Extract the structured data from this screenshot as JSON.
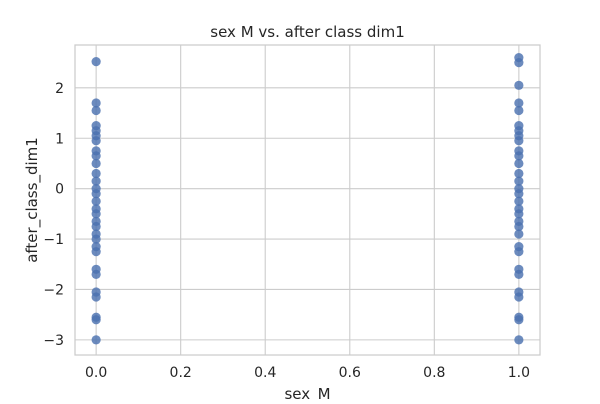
{
  "chart_data": {
    "type": "scatter",
    "title": "sex M vs. after class dim1",
    "xlabel": "sex_M",
    "ylabel": "after_class_dim1",
    "xlim": [
      -0.05,
      1.05
    ],
    "ylim": [
      -3.3,
      2.85
    ],
    "grid": true,
    "xticks": [
      0.0,
      0.2,
      0.4,
      0.6,
      0.8,
      1.0
    ],
    "xtick_labels": [
      "0.0",
      "0.2",
      "0.4",
      "0.6",
      "0.8",
      "1.0"
    ],
    "yticks": [
      -3,
      -2,
      -1,
      0,
      1,
      2
    ],
    "ytick_labels": [
      "−3",
      "−2",
      "−1",
      "0",
      "1",
      "2"
    ],
    "series": [
      {
        "color": "#4c72b0",
        "points": [
          [
            0,
            2.52
          ],
          [
            0,
            1.7
          ],
          [
            0,
            1.55
          ],
          [
            0,
            1.25
          ],
          [
            0,
            1.15
          ],
          [
            0,
            1.05
          ],
          [
            0,
            0.95
          ],
          [
            0,
            0.75
          ],
          [
            0,
            0.65
          ],
          [
            0,
            0.5
          ],
          [
            0,
            0.3
          ],
          [
            0,
            0.15
          ],
          [
            0,
            0.0
          ],
          [
            0,
            -0.1
          ],
          [
            0,
            -0.25
          ],
          [
            0,
            -0.4
          ],
          [
            0,
            -0.5
          ],
          [
            0,
            -0.65
          ],
          [
            0,
            -0.75
          ],
          [
            0,
            -0.9
          ],
          [
            0,
            -1.0
          ],
          [
            0,
            -1.15
          ],
          [
            0,
            -1.25
          ],
          [
            0,
            -1.6
          ],
          [
            0,
            -1.7
          ],
          [
            0,
            -2.05
          ],
          [
            0,
            -2.15
          ],
          [
            0,
            -2.55
          ],
          [
            0,
            -2.6
          ],
          [
            0,
            -3.0
          ],
          [
            1,
            2.6
          ],
          [
            1,
            2.5
          ],
          [
            1,
            2.05
          ],
          [
            1,
            1.7
          ],
          [
            1,
            1.55
          ],
          [
            1,
            1.25
          ],
          [
            1,
            1.15
          ],
          [
            1,
            1.05
          ],
          [
            1,
            0.95
          ],
          [
            1,
            0.75
          ],
          [
            1,
            0.65
          ],
          [
            1,
            0.5
          ],
          [
            1,
            0.3
          ],
          [
            1,
            0.15
          ],
          [
            1,
            0.0
          ],
          [
            1,
            -0.1
          ],
          [
            1,
            -0.25
          ],
          [
            1,
            -0.4
          ],
          [
            1,
            -0.5
          ],
          [
            1,
            -0.65
          ],
          [
            1,
            -0.75
          ],
          [
            1,
            -0.9
          ],
          [
            1,
            -1.15
          ],
          [
            1,
            -1.25
          ],
          [
            1,
            -1.6
          ],
          [
            1,
            -1.7
          ],
          [
            1,
            -2.05
          ],
          [
            1,
            -2.15
          ],
          [
            1,
            -2.55
          ],
          [
            1,
            -2.6
          ],
          [
            1,
            -3.0
          ]
        ]
      }
    ]
  }
}
